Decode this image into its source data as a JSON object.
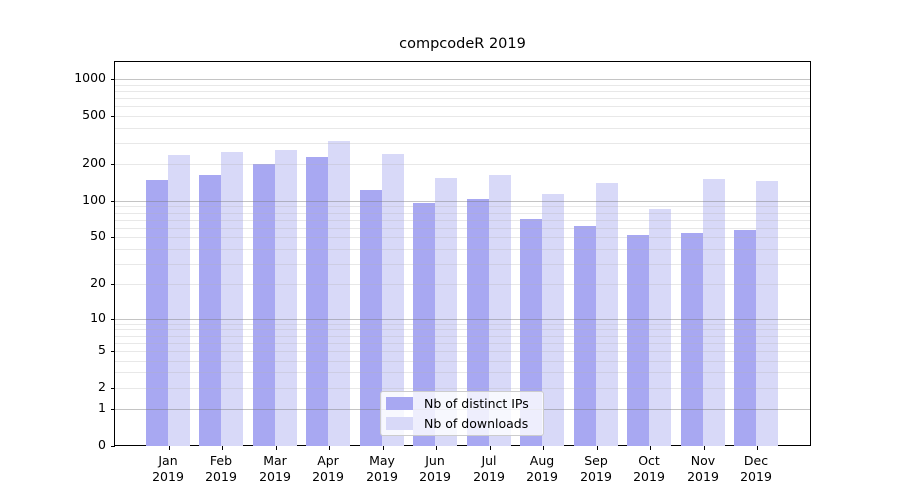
{
  "title": "compcodeR 2019",
  "chart_data": {
    "type": "bar",
    "title": "compcodeR 2019",
    "categories": [
      "Jan 2019",
      "Feb 2019",
      "Mar 2019",
      "Apr 2019",
      "May 2019",
      "Jun 2019",
      "Jul 2019",
      "Aug 2019",
      "Sep 2019",
      "Oct 2019",
      "Nov 2019",
      "Dec 2019"
    ],
    "series": [
      {
        "name": "Nb of distinct IPs",
        "color": "#a8a8f2",
        "values": [
          150,
          164,
          200,
          228,
          123,
          97,
          104,
          71,
          62,
          52,
          54,
          57
        ]
      },
      {
        "name": "Nb of downloads",
        "color": "#d8d9f8",
        "values": [
          240,
          252,
          264,
          313,
          245,
          155,
          165,
          115,
          140,
          85,
          152,
          145
        ]
      }
    ],
    "xlabel": "",
    "ylabel": "",
    "y_scale": "log1p",
    "ylim": [
      0,
      1380
    ],
    "y_ticks": [
      0,
      1,
      2,
      5,
      10,
      20,
      50,
      100,
      200,
      500,
      1000
    ],
    "y_major_gridlines": [
      1,
      10,
      100,
      1000
    ],
    "grid": "on, drawn above bars",
    "legend_position": "lower center"
  },
  "legend": {
    "items": [
      {
        "label": "Nb of distinct IPs",
        "color": "#a8a8f2"
      },
      {
        "label": "Nb of downloads",
        "color": "#d8d9f8"
      }
    ]
  }
}
